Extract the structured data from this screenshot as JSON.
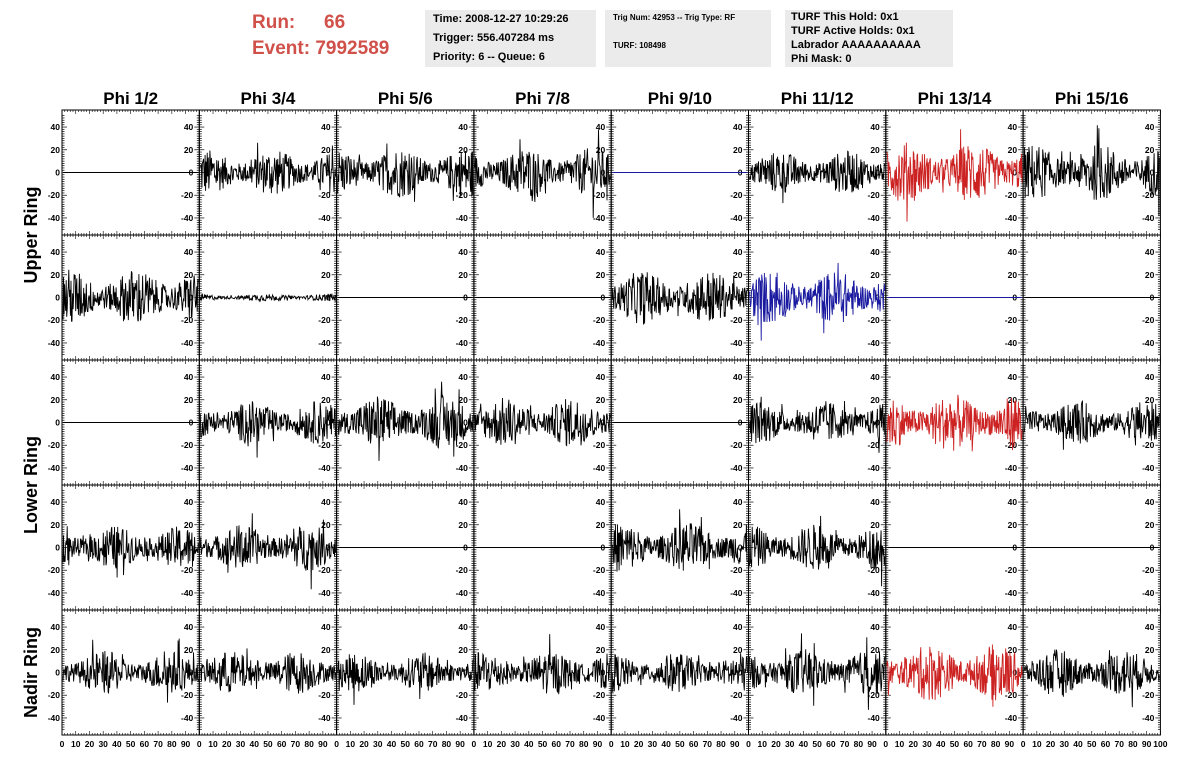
{
  "header": {
    "run_label": "Run:",
    "run_value": "66",
    "event_label": "Event:",
    "event_value": "7992589",
    "time": "Time: 2008-12-27 10:29:26",
    "trigger": "Trigger: 556.407284 ms",
    "priority": "Priority: 6 -- Queue: 6",
    "trig_num": "Trig Num: 42953 -- Trig Type: RF",
    "turf": "TURF: 108498",
    "turf_this_hold": "TURF This Hold: 0x1",
    "turf_active_holds": "TURF Active Holds: 0x1",
    "labrador": "Labrador AAAAAAAAAA",
    "phi_mask": "Phi Mask: 0"
  },
  "chart_data": {
    "type": "line",
    "columns": [
      "Phi 1/2",
      "Phi 3/4",
      "Phi 5/6",
      "Phi 7/8",
      "Phi 9/10",
      "Phi 11/12",
      "Phi 13/14",
      "Phi 15/16"
    ],
    "rows": [
      "Upper Ring",
      "Upper Ring",
      "Lower Ring",
      "Lower Ring",
      "Nadir Ring"
    ],
    "row_titles": [
      "Upper Ring",
      "Lower Ring",
      "Nadir Ring"
    ],
    "ylim": [
      -55,
      55
    ],
    "yticks": [
      -40,
      -20,
      0,
      20,
      40
    ],
    "xlim": [
      0,
      100
    ],
    "xtick_labels": [
      "0",
      "10",
      "20",
      "30",
      "40",
      "50",
      "60",
      "70",
      "80",
      "90",
      "100"
    ],
    "colors": {
      "black": "#000000",
      "red": "#cc2222",
      "blue": "#1a1aa0"
    },
    "panels": [
      [
        {
          "amp": 0,
          "color": "black"
        },
        {
          "amp": 13,
          "color": "black"
        },
        {
          "amp": 14,
          "color": "black"
        },
        {
          "amp": 14,
          "color": "black"
        },
        {
          "amp": 0,
          "color": "blue"
        },
        {
          "amp": 12,
          "color": "black"
        },
        {
          "amp": 17,
          "color": "red"
        },
        {
          "amp": 16,
          "color": "black"
        }
      ],
      [
        {
          "amp": 16,
          "color": "black"
        },
        {
          "amp": 2,
          "color": "black"
        },
        {
          "amp": 0,
          "color": "black"
        },
        {
          "amp": 0,
          "color": "black"
        },
        {
          "amp": 15,
          "color": "black"
        },
        {
          "amp": 15,
          "color": "blue"
        },
        {
          "amp": 0,
          "color": "blue"
        },
        {
          "amp": 0,
          "color": "black"
        }
      ],
      [
        {
          "amp": 0,
          "color": "black"
        },
        {
          "amp": 12,
          "color": "black"
        },
        {
          "amp": 15,
          "color": "black"
        },
        {
          "amp": 14,
          "color": "black"
        },
        {
          "amp": 0,
          "color": "black"
        },
        {
          "amp": 12,
          "color": "black"
        },
        {
          "amp": 16,
          "color": "red"
        },
        {
          "amp": 12,
          "color": "black"
        }
      ],
      [
        {
          "amp": 12,
          "color": "black"
        },
        {
          "amp": 13,
          "color": "black"
        },
        {
          "amp": 0,
          "color": "black"
        },
        {
          "amp": 0,
          "color": "black"
        },
        {
          "amp": 14,
          "color": "black"
        },
        {
          "amp": 13,
          "color": "black"
        },
        {
          "amp": 0,
          "color": "black"
        },
        {
          "amp": 0,
          "color": "black"
        }
      ],
      [
        {
          "amp": 12,
          "color": "black"
        },
        {
          "amp": 12,
          "color": "black"
        },
        {
          "amp": 11,
          "color": "black"
        },
        {
          "amp": 12,
          "color": "black"
        },
        {
          "amp": 11,
          "color": "black"
        },
        {
          "amp": 13,
          "color": "black"
        },
        {
          "amp": 16,
          "color": "red"
        },
        {
          "amp": 13,
          "color": "black"
        }
      ]
    ]
  }
}
